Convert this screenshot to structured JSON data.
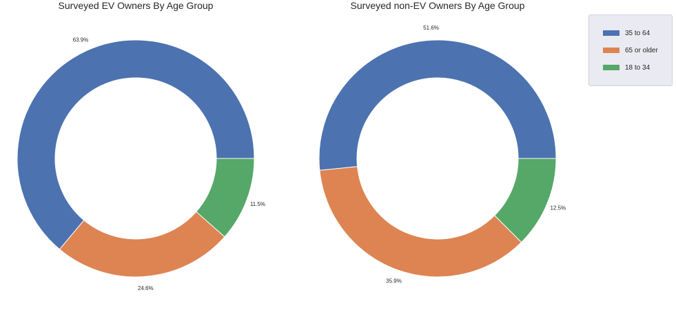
{
  "colors": {
    "35 to 64": "#4c72b0",
    "65 or older": "#dd8452",
    "18 to 34": "#55a868"
  },
  "legend": {
    "placement": "top-right",
    "items": [
      {
        "label": "35 to 64",
        "color": "#4c72b0"
      },
      {
        "label": "65 or older",
        "color": "#dd8452"
      },
      {
        "label": "18 to 34",
        "color": "#55a868"
      }
    ]
  },
  "chart_data": [
    {
      "type": "pie",
      "variant": "donut",
      "title": "Surveyed EV Owners By Age Group",
      "categories": [
        "35 to 64",
        "65 or older",
        "18 to 34"
      ],
      "values": [
        63.9,
        24.6,
        11.5
      ],
      "labels": [
        "63.9%",
        "24.6%",
        "11.5%"
      ],
      "colors": [
        "#4c72b0",
        "#dd8452",
        "#55a868"
      ]
    },
    {
      "type": "pie",
      "variant": "donut",
      "title": "Surveyed non-EV Owners By Age Group",
      "categories": [
        "35 to 64",
        "65 or older",
        "18 to 34"
      ],
      "values": [
        51.6,
        35.9,
        12.5
      ],
      "labels": [
        "51.6%",
        "35.9%",
        "12.5%"
      ],
      "colors": [
        "#4c72b0",
        "#dd8452",
        "#55a868"
      ]
    }
  ]
}
